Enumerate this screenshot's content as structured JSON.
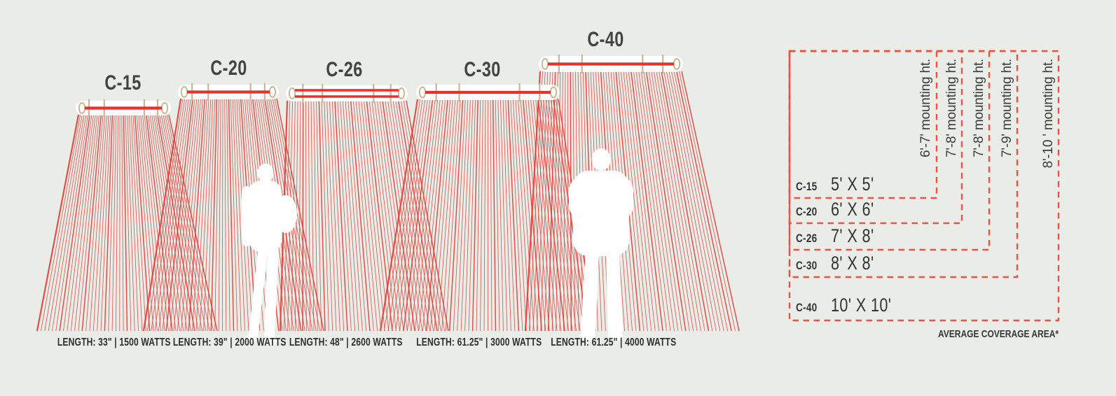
{
  "models": [
    {
      "name": "C-15",
      "length_label": "LENGTH: 33\" | 1500 WATTS",
      "coverage": "5' X 5'",
      "mounting_height": "6'-7' mounting ht."
    },
    {
      "name": "C-20",
      "length_label": "LENGTH: 39\" | 2000 WATTS",
      "coverage": "6' X 6'",
      "mounting_height": "7'-8' mounting ht."
    },
    {
      "name": "C-26",
      "length_label": "LENGTH: 48\" | 2600 WATTS",
      "coverage": "7' X 8'",
      "mounting_height": "7'-8' mounting ht."
    },
    {
      "name": "C-30",
      "length_label": "LENGTH: 61.25\" | 3000 WATTS",
      "coverage": "8' X 8'",
      "mounting_height": "7'-9' mounting ht."
    },
    {
      "name": "C-40",
      "length_label": "LENGTH: 61.25\" | 4000 WATTS",
      "coverage": "10' X 10'",
      "mounting_height": "8'-10 ' mounting ht."
    }
  ],
  "coverage_note": "AVERAGE COVERAGE AREA*",
  "colors": {
    "background": "#e9ece7",
    "ray_red": "#e13a33",
    "element_red": "#e8312c",
    "dashed_red": "#ec5347",
    "fixture_white": "#ffffff",
    "bracket_tan": "#cab696",
    "text_dark": "#3b403d",
    "silhouette_white": "#ffffff"
  }
}
